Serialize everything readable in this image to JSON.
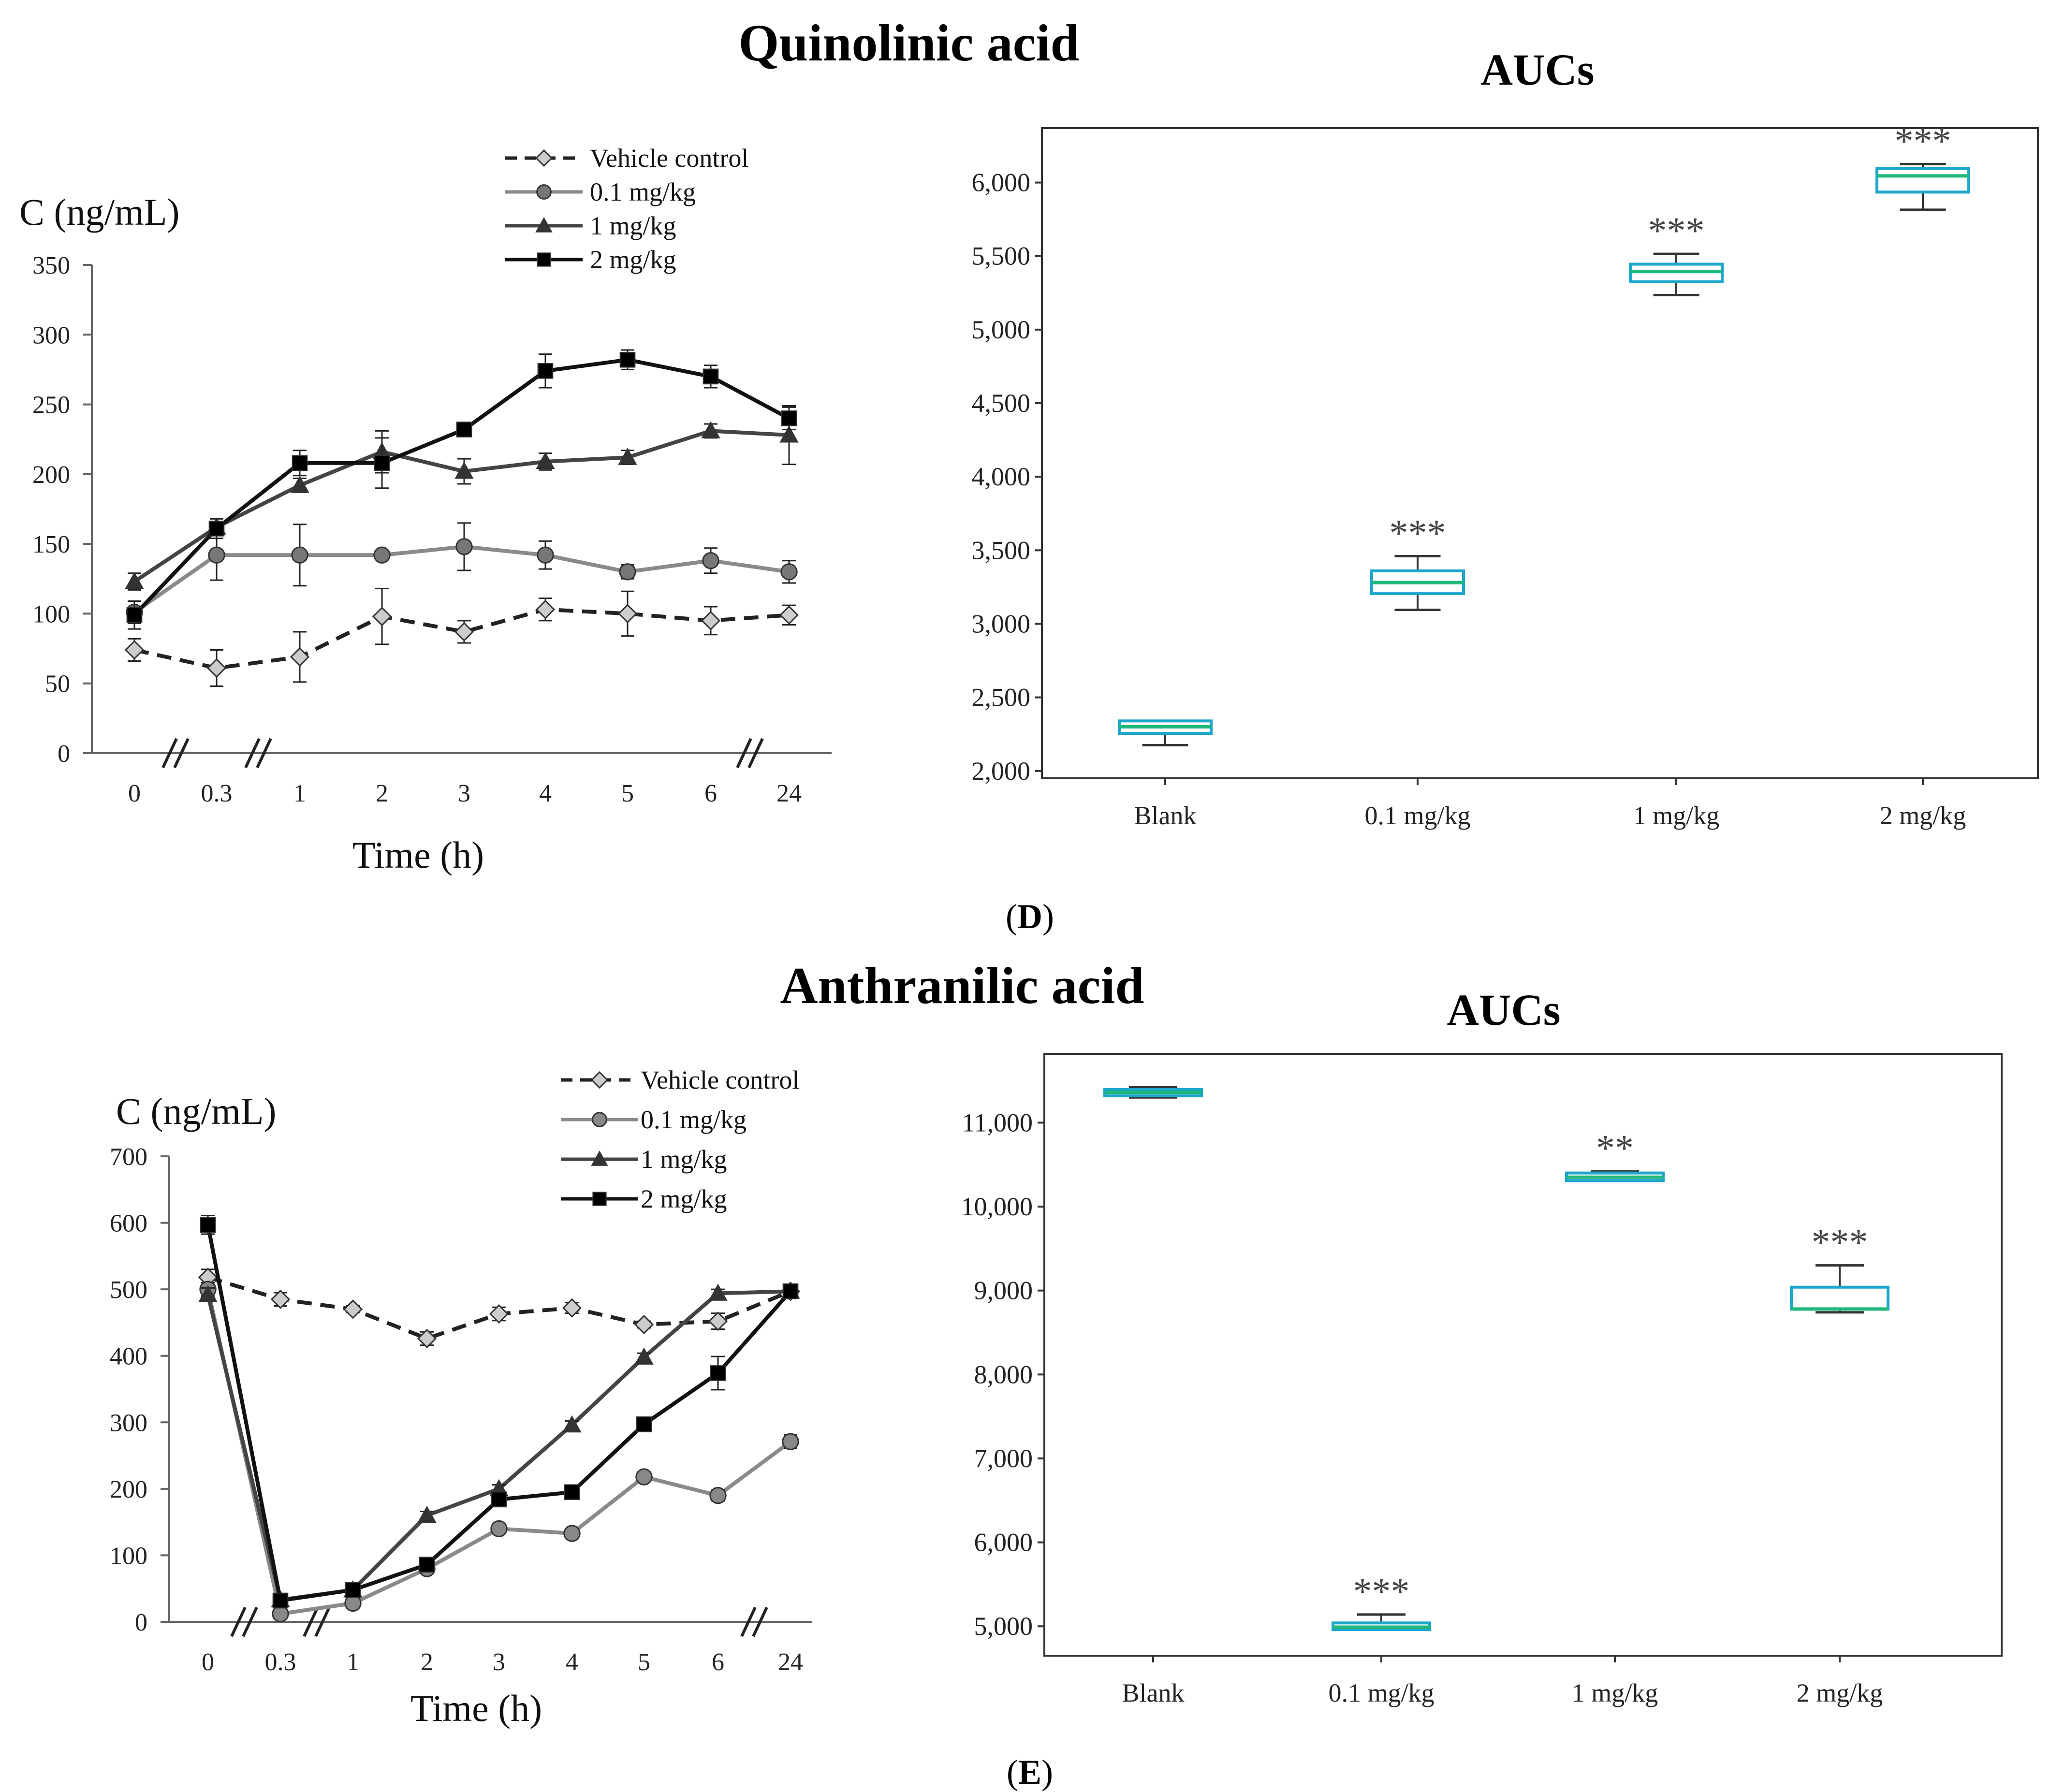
{
  "panels": [
    {
      "id": "D",
      "panel_label": "D",
      "compound_title": "Quinolinic acid",
      "line_chart": {
        "type": "line",
        "ylabel": "C (ng/mL)",
        "xlabel": "Time (h)",
        "categories": [
          "0",
          "0.3",
          "1",
          "2",
          "3",
          "4",
          "5",
          "6",
          "24"
        ],
        "ylim": [
          0,
          350
        ],
        "yticks": [
          0,
          50,
          100,
          150,
          200,
          250,
          300,
          350
        ],
        "axis_breaks_after_index": [
          0,
          1,
          7
        ],
        "series": [
          {
            "name": "Vehicle control",
            "marker": "diamond",
            "dashed": true,
            "color": "#222222",
            "fill": "#cccccc",
            "values": [
              74,
              61,
              69,
              98,
              87,
              103,
              100,
              95,
              99
            ],
            "errors": [
              8,
              13,
              18,
              20,
              8,
              8,
              16,
              10,
              7
            ]
          },
          {
            "name": "0.1 mg/kg",
            "marker": "circle",
            "dashed": false,
            "color": "#8a8a8a",
            "fill": "#777777",
            "values": [
              101,
              142,
              142,
              142,
              148,
              142,
              130,
              138,
              130
            ],
            "errors": [
              8,
              18,
              22,
              0,
              17,
              10,
              5,
              9,
              8
            ]
          },
          {
            "name": "1 mg/kg",
            "marker": "triangle",
            "dashed": false,
            "color": "#444444",
            "fill": "#333333",
            "values": [
              123,
              162,
              192,
              216,
              202,
              209,
              212,
              231,
              228
            ],
            "errors": [
              6,
              6,
              5,
              15,
              9,
              6,
              5,
              5,
              21
            ]
          },
          {
            "name": "2 mg/kg",
            "marker": "square",
            "dashed": false,
            "color": "#111111",
            "fill": "#000000",
            "values": [
              99,
              161,
              208,
              208,
              232,
              274,
              282,
              270,
              240
            ],
            "errors": [
              10,
              7,
              9,
              18,
              4,
              12,
              7,
              8,
              8
            ]
          }
        ]
      },
      "auc_chart": {
        "type": "box",
        "title": "AUCs",
        "categories": [
          "Blank",
          "0.1 mg/kg",
          "1 mg/kg",
          "2 mg/kg"
        ],
        "ylim": [
          1950,
          6370
        ],
        "yticks": [
          2000,
          2500,
          3000,
          3500,
          4000,
          4500,
          5000,
          5500,
          6000
        ],
        "ytick_labels": [
          "2,000",
          "2,500",
          "3,000",
          "3,500",
          "4,000",
          "4,500",
          "5,000",
          "5,500",
          "6,000"
        ],
        "boxes": [
          {
            "min": 2175,
            "q1": 2255,
            "median": 2300,
            "q3": 2340,
            "max": 2340,
            "significance": ""
          },
          {
            "min": 3095,
            "q1": 3205,
            "median": 3280,
            "q3": 3360,
            "max": 3460,
            "significance": "***"
          },
          {
            "min": 5235,
            "q1": 5325,
            "median": 5395,
            "q3": 5445,
            "max": 5515,
            "significance": "***"
          },
          {
            "min": 5815,
            "q1": 5935,
            "median": 6045,
            "q3": 6095,
            "max": 6125,
            "significance": "***"
          }
        ]
      }
    },
    {
      "id": "E",
      "panel_label": "E",
      "compound_title": "Anthranilic acid",
      "line_chart": {
        "type": "line",
        "ylabel": "C (ng/mL)",
        "xlabel": "Time (h)",
        "categories": [
          "0",
          "0.3",
          "1",
          "2",
          "3",
          "4",
          "5",
          "6",
          "24"
        ],
        "ylim": [
          0,
          700
        ],
        "yticks": [
          0,
          100,
          200,
          300,
          400,
          500,
          600,
          700
        ],
        "axis_breaks_after_index": [
          0,
          1,
          7
        ],
        "series": [
          {
            "name": "Vehicle control",
            "marker": "diamond",
            "dashed": true,
            "color": "#222222",
            "fill": "#cccccc",
            "values": [
              518,
              485,
              470,
              426,
              463,
              472,
              447,
              452,
              497
            ],
            "errors": [
              12,
              10,
              5,
              10,
              10,
              8,
              5,
              12,
              5
            ]
          },
          {
            "name": "0.1 mg/kg",
            "marker": "circle",
            "dashed": false,
            "color": "#8a8a8a",
            "fill": "#888888",
            "values": [
              500,
              12,
              28,
              80,
              140,
              133,
              218,
              190,
              271
            ],
            "errors": [
              10,
              3,
              3,
              5,
              5,
              5,
              5,
              8,
              10
            ]
          },
          {
            "name": "1 mg/kg",
            "marker": "triangle",
            "dashed": false,
            "color": "#444444",
            "fill": "#333333",
            "values": [
              492,
              33,
              48,
              160,
              200,
              296,
              398,
              494,
              497
            ],
            "errors": [
              10,
              4,
              4,
              6,
              6,
              6,
              6,
              6,
              5
            ]
          },
          {
            "name": "2 mg/kg",
            "marker": "square",
            "dashed": false,
            "color": "#111111",
            "fill": "#000000",
            "values": [
              597,
              32,
              48,
              86,
              184,
              195,
              297,
              374,
              497
            ],
            "errors": [
              14,
              4,
              4,
              6,
              10,
              6,
              6,
              25,
              5
            ]
          }
        ]
      },
      "auc_chart": {
        "type": "box",
        "title": "AUCs",
        "categories": [
          "Blank",
          "0.1 mg/kg",
          "1 mg/kg",
          "2 mg/kg"
        ],
        "ylim": [
          4650,
          11820
        ],
        "yticks": [
          5000,
          6000,
          7000,
          8000,
          9000,
          10000,
          11000
        ],
        "ytick_labels": [
          "5,000",
          "6,000",
          "7,000",
          "8,000",
          "9,000",
          "10,000",
          "11,000"
        ],
        "boxes": [
          {
            "min": 11300,
            "q1": 11320,
            "median": 11360,
            "q3": 11395,
            "max": 11420,
            "significance": ""
          },
          {
            "min": 4960,
            "q1": 4960,
            "median": 4990,
            "q3": 5040,
            "max": 5140,
            "significance": "***"
          },
          {
            "min": 10310,
            "q1": 10310,
            "median": 10350,
            "q3": 10400,
            "max": 10420,
            "significance": "**"
          },
          {
            "min": 8740,
            "q1": 8780,
            "median": 8780,
            "q3": 9040,
            "max": 9300,
            "significance": "***"
          }
        ]
      }
    }
  ]
}
